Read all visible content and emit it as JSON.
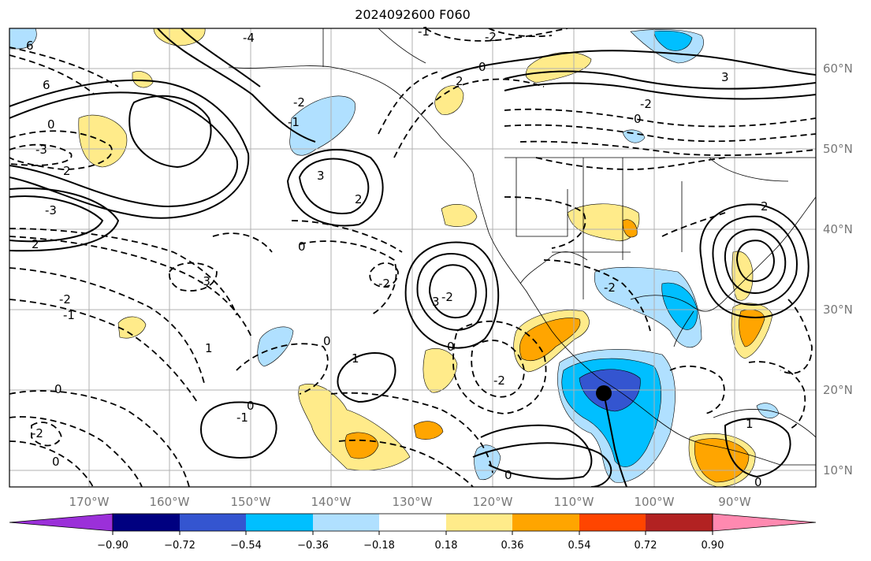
{
  "title": "2024092600 F060",
  "map": {
    "lon_ticks": [
      "170°W",
      "160°W",
      "150°W",
      "140°W",
      "130°W",
      "120°W",
      "110°W",
      "100°W",
      "90°W"
    ],
    "lat_ticks": [
      "60°N",
      "50°N",
      "40°N",
      "30°N",
      "20°N",
      "10°N"
    ],
    "contour_labels": [
      "6",
      "2",
      "-3",
      "-1",
      "-2",
      "-4",
      "0",
      "2",
      "6",
      "3",
      "-2",
      "-3",
      "3",
      "2",
      "-2",
      "0",
      "-3",
      "-1",
      "-2",
      "2",
      "0",
      "3",
      "-2",
      "0",
      "-1",
      "1",
      "1",
      "0",
      "-2",
      "2",
      "-2",
      "-2",
      "0",
      "0",
      "-1",
      "0",
      "-2",
      "0",
      "1",
      "0",
      "0"
    ],
    "marker": "storm-center"
  },
  "colorbar": {
    "colors": [
      "#9b30d9",
      "#000080",
      "#3455d0",
      "#00bfff",
      "#b0e0ff",
      "#ffffff",
      "#ffeb8a",
      "#ffa500",
      "#ff4500",
      "#b22222",
      "#ff89b0"
    ],
    "ticks": [
      "−0.90",
      "−0.72",
      "−0.54",
      "−0.36",
      "−0.18",
      "0.18",
      "0.36",
      "0.54",
      "0.72",
      "0.90"
    ]
  }
}
